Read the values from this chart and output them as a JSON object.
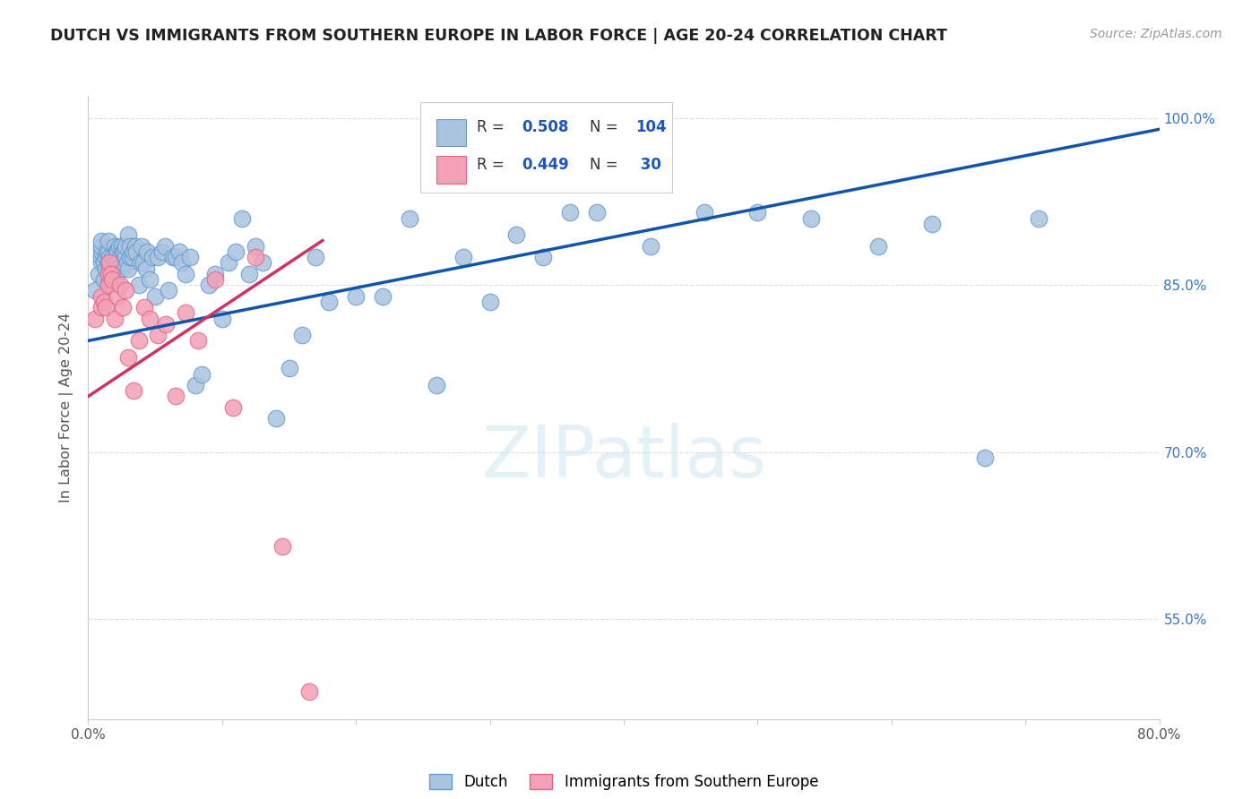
{
  "title": "DUTCH VS IMMIGRANTS FROM SOUTHERN EUROPE IN LABOR FORCE | AGE 20-24 CORRELATION CHART",
  "source": "Source: ZipAtlas.com",
  "ylabel": "In Labor Force | Age 20-24",
  "xlim": [
    0.0,
    0.8
  ],
  "ylim": [
    0.46,
    1.02
  ],
  "ytick_positions": [
    0.55,
    0.7,
    0.85,
    1.0
  ],
  "ytick_labels": [
    "55.0%",
    "70.0%",
    "85.0%",
    "100.0%"
  ],
  "watermark": "ZIPatlas",
  "dutch_color": "#aac4e0",
  "dutch_edge": "#6699cc",
  "immigrant_color": "#f4a0b5",
  "immigrant_edge": "#dd6688",
  "blue_line_color": "#1155aa",
  "pink_line_color": "#cc3366",
  "grid_color": "#dddddd",
  "title_color": "#222222",
  "right_tick_color": "#3377cc",
  "dutch_points_x": [
    0.005,
    0.008,
    0.01,
    0.01,
    0.01,
    0.01,
    0.01,
    0.012,
    0.012,
    0.013,
    0.013,
    0.014,
    0.015,
    0.015,
    0.015,
    0.015,
    0.015,
    0.016,
    0.016,
    0.016,
    0.017,
    0.017,
    0.018,
    0.018,
    0.019,
    0.02,
    0.02,
    0.02,
    0.021,
    0.021,
    0.022,
    0.022,
    0.023,
    0.023,
    0.024,
    0.025,
    0.025,
    0.026,
    0.026,
    0.027,
    0.028,
    0.028,
    0.029,
    0.03,
    0.03,
    0.031,
    0.031,
    0.033,
    0.034,
    0.035,
    0.036,
    0.038,
    0.039,
    0.04,
    0.041,
    0.043,
    0.044,
    0.046,
    0.048,
    0.05,
    0.052,
    0.055,
    0.057,
    0.06,
    0.063,
    0.065,
    0.068,
    0.07,
    0.073,
    0.076,
    0.08,
    0.085,
    0.09,
    0.095,
    0.1,
    0.105,
    0.11,
    0.115,
    0.12,
    0.125,
    0.13,
    0.14,
    0.15,
    0.16,
    0.17,
    0.18,
    0.2,
    0.22,
    0.24,
    0.26,
    0.28,
    0.3,
    0.32,
    0.34,
    0.36,
    0.38,
    0.42,
    0.46,
    0.5,
    0.54,
    0.59,
    0.63,
    0.67,
    0.71
  ],
  "dutch_points_y": [
    0.845,
    0.86,
    0.87,
    0.875,
    0.88,
    0.885,
    0.89,
    0.855,
    0.87,
    0.865,
    0.875,
    0.88,
    0.85,
    0.86,
    0.87,
    0.88,
    0.89,
    0.855,
    0.865,
    0.875,
    0.86,
    0.87,
    0.855,
    0.875,
    0.865,
    0.855,
    0.87,
    0.885,
    0.87,
    0.88,
    0.865,
    0.88,
    0.87,
    0.885,
    0.875,
    0.865,
    0.885,
    0.87,
    0.88,
    0.88,
    0.875,
    0.885,
    0.87,
    0.865,
    0.895,
    0.875,
    0.885,
    0.875,
    0.88,
    0.885,
    0.88,
    0.85,
    0.87,
    0.885,
    0.87,
    0.865,
    0.88,
    0.855,
    0.875,
    0.84,
    0.875,
    0.88,
    0.885,
    0.845,
    0.875,
    0.875,
    0.88,
    0.87,
    0.86,
    0.875,
    0.76,
    0.77,
    0.85,
    0.86,
    0.82,
    0.87,
    0.88,
    0.91,
    0.86,
    0.885,
    0.87,
    0.73,
    0.775,
    0.805,
    0.875,
    0.835,
    0.84,
    0.84,
    0.91,
    0.76,
    0.875,
    0.835,
    0.895,
    0.875,
    0.915,
    0.915,
    0.885,
    0.915,
    0.915,
    0.91,
    0.885,
    0.905,
    0.695,
    0.91
  ],
  "imm_points_x": [
    0.005,
    0.01,
    0.01,
    0.012,
    0.013,
    0.015,
    0.015,
    0.016,
    0.017,
    0.018,
    0.02,
    0.022,
    0.024,
    0.026,
    0.028,
    0.03,
    0.034,
    0.038,
    0.042,
    0.046,
    0.052,
    0.058,
    0.065,
    0.073,
    0.082,
    0.095,
    0.108,
    0.125,
    0.145,
    0.165
  ],
  "imm_points_y": [
    0.82,
    0.83,
    0.84,
    0.835,
    0.83,
    0.85,
    0.86,
    0.87,
    0.86,
    0.855,
    0.82,
    0.84,
    0.85,
    0.83,
    0.845,
    0.785,
    0.755,
    0.8,
    0.83,
    0.82,
    0.805,
    0.815,
    0.75,
    0.825,
    0.8,
    0.855,
    0.74,
    0.875,
    0.615,
    0.485
  ],
  "blue_line_x": [
    0.0,
    0.8
  ],
  "blue_line_y": [
    0.8,
    0.99
  ],
  "pink_line_x": [
    0.0,
    0.175
  ],
  "pink_line_y": [
    0.75,
    0.89
  ]
}
